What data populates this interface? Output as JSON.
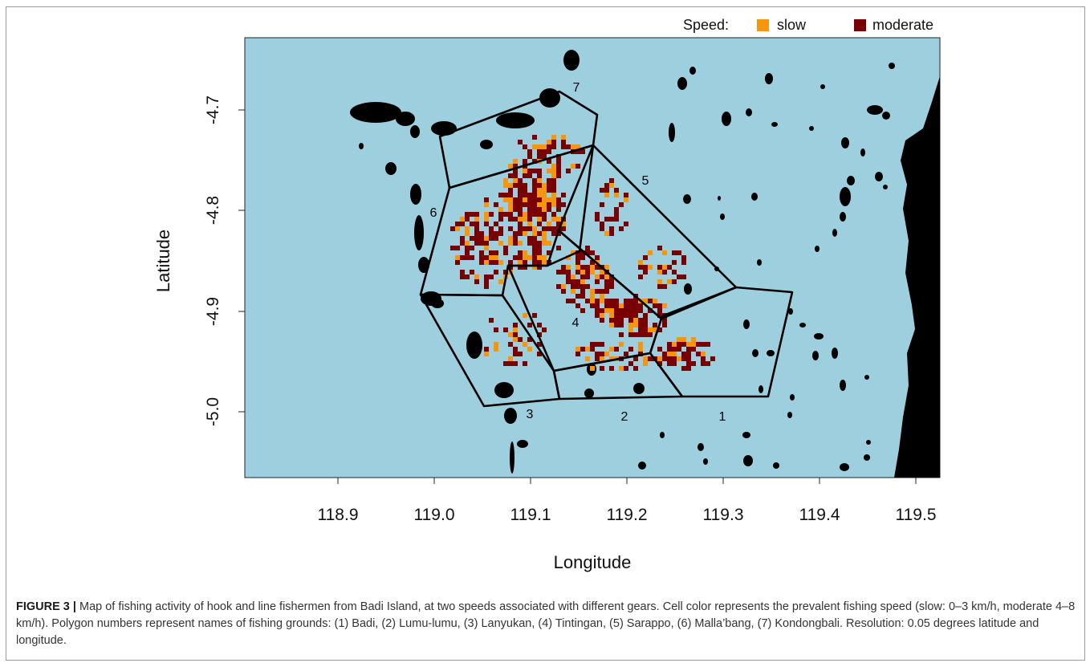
{
  "figure": {
    "legend": {
      "title": "Speed:",
      "items": [
        {
          "label": "slow",
          "color": "#F7960C"
        },
        {
          "label": "moderate",
          "color": "#780000"
        }
      ]
    },
    "axes": {
      "xlabel": "Longitude",
      "ylabel": "Latitude",
      "xticks": [
        "118.9",
        "119.0",
        "119.1",
        "119.2",
        "119.3",
        "119.4",
        "119.5"
      ],
      "yticks": [
        "-4.7",
        "-4.8",
        "-4.9",
        "-5.0"
      ]
    },
    "polygon_labels": [
      "1",
      "2",
      "3",
      "4",
      "5",
      "6",
      "7"
    ],
    "colors": {
      "sea": "#9ECFDF",
      "land": "#000000",
      "slow": "#F7960C",
      "moderate": "#780000",
      "boundary": "#000000"
    }
  },
  "caption": {
    "label": "FIGURE 3 |",
    "text": " Map of fishing activity of hook and line fishermen from Badi Island, at two speeds associated with different gears. Cell color represents the prevalent fishing speed (slow: 0–3 km/h, moderate 4–8 km/h). Polygon numbers represent names of fishing grounds: (1) Badi, (2) Lumu-lumu, (3) Lanyukan, (4) Tintingan, (5) Sarappo, (6) Malla’bang, (7) Kondongbali. Resolution: 0.05 degrees latitude and longitude."
  }
}
